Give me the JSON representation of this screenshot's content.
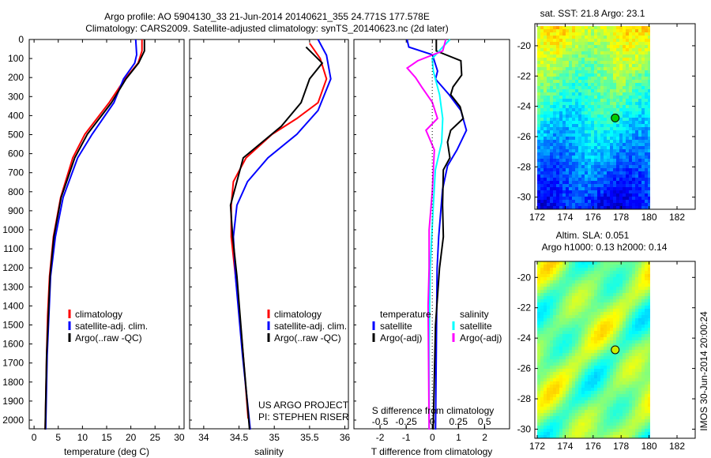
{
  "title": {
    "line1": "Argo profile: AO 5904130_33 21-Jun-2014 20140621_355 24.771S 177.578E",
    "line2": "Climatology: CARS2009. Satellite-adjusted climatology: synTS_20140623.nc (2d later)"
  },
  "colors": {
    "climatology": "#ff0000",
    "satellite": "#0000ff",
    "argo": "#000000",
    "s_satellite": "#00ffff",
    "s_argo": "#ff00ff"
  },
  "chart_data": [
    {
      "type": "line",
      "xlabel": "temperature (deg C)",
      "ylabel": "",
      "xlim": [
        -1,
        31
      ],
      "ylim": [
        2060,
        0
      ],
      "xticks": [
        "0",
        "5",
        "10",
        "15",
        "20",
        "25",
        "30"
      ],
      "yticks": [
        "0",
        "100",
        "200",
        "300",
        "400",
        "500",
        "600",
        "700",
        "800",
        "900",
        "1000",
        "1100",
        "1200",
        "1300",
        "1400",
        "1500",
        "1600",
        "1700",
        "1800",
        "1900",
        "2000"
      ],
      "legend": [
        "climatology",
        "satellite-adj. clim.",
        "Argo(..raw -QC)"
      ],
      "series": [
        {
          "name": "climatology",
          "depth": [
            0,
            60,
            124,
            207,
            332,
            415,
            498,
            622,
            830,
            1037,
            1245,
            1452,
            1660,
            1867,
            2050
          ],
          "values": [
            22.3,
            22.3,
            21.5,
            18.8,
            15.5,
            13,
            10.5,
            8,
            5.5,
            4,
            3.2,
            2.8,
            2.6,
            2.45,
            2.3
          ]
        },
        {
          "name": "satellite-adj. clim.",
          "depth": [
            0,
            80,
            124,
            207,
            332,
            498,
            622,
            830,
            1037,
            1245,
            1660,
            2050
          ],
          "values": [
            21.0,
            21.2,
            20.8,
            18.5,
            16.5,
            12,
            9,
            6,
            4.4,
            3.4,
            2.7,
            2.4
          ]
        },
        {
          "name": "Argo(..raw -QC)",
          "depth": [
            0,
            60,
            124,
            207,
            332,
            498,
            622,
            830,
            1037,
            1245,
            1660,
            2050
          ],
          "values": [
            22.8,
            22.8,
            21.6,
            19,
            16,
            11,
            8.4,
            5.6,
            4.1,
            3.3,
            2.6,
            2.3
          ]
        }
      ]
    },
    {
      "type": "line",
      "xlabel": "salinity",
      "xlim": [
        33.8,
        36.05
      ],
      "ylim": [
        2060,
        0
      ],
      "xticks": [
        "34",
        "34.5",
        "35",
        "35.5",
        "36"
      ],
      "legend": [
        "climatology",
        "satellite-adj. clim.",
        "Argo(..raw -QC)"
      ],
      "annotation": [
        "US ARGO PROJECT",
        "PI: STEPHEN RISER"
      ],
      "series": [
        {
          "name": "climatology",
          "depth": [
            20,
            100,
            207,
            332,
            415,
            498,
            622,
            747,
            871,
            1037,
            1245,
            1452,
            1660,
            1992
          ],
          "values": [
            35.5,
            35.65,
            35.74,
            35.62,
            35.32,
            34.97,
            34.6,
            34.42,
            34.39,
            34.39,
            34.45,
            34.51,
            34.56,
            34.63
          ]
        },
        {
          "name": "satellite-adj. clim.",
          "depth": [
            0,
            83,
            207,
            373,
            498,
            622,
            747,
            871,
            1037,
            1245,
            1660,
            2050
          ],
          "values": [
            35.62,
            35.74,
            35.8,
            35.62,
            35.32,
            34.91,
            34.62,
            34.47,
            34.42,
            34.45,
            34.55,
            34.66
          ]
        },
        {
          "name": "Argo(..raw -QC)",
          "depth": [
            40,
            124,
            207,
            332,
            456,
            622,
            871,
            1037,
            1245,
            1660,
            2050
          ],
          "values": [
            35.45,
            35.68,
            35.5,
            35.38,
            35.1,
            34.56,
            34.38,
            34.41,
            34.47,
            34.56,
            34.65
          ]
        }
      ]
    },
    {
      "type": "line",
      "xlabel": "T difference from climatology",
      "x2label": "S difference from climatology",
      "xlim": [
        -3.0,
        2.95
      ],
      "x2lim": [
        -0.75,
        0.74
      ],
      "ylim": [
        2060,
        0
      ],
      "xticks": [
        "-2",
        "-1",
        "0",
        "1",
        "2"
      ],
      "x2ticks": [
        "-0.5",
        "-0.25",
        "0",
        "0.25",
        "0.5"
      ],
      "legend_t_title": "temperature",
      "legend_s_title": "salinity",
      "legend": [
        "satellite",
        "Argo(-adj)",
        "satellite",
        "Argo(-adj)"
      ],
      "series": [
        {
          "name": "T satellite",
          "axis": "T",
          "depth": [
            0,
            40,
            80,
            166,
            208,
            290,
            373,
            477,
            580,
            664,
            788,
            1037,
            1203,
            2050
          ],
          "values": [
            -0.97,
            -0.9,
            0,
            0.2,
            0.12,
            0.64,
            1.09,
            1.3,
            0.94,
            0.58,
            0.39,
            0.24,
            0.18,
            0.12
          ]
        },
        {
          "name": "T Argo(-adj)",
          "axis": "T",
          "depth": [
            0,
            60,
            112,
            187,
            249,
            290,
            353,
            415,
            477,
            539,
            622,
            685,
            871,
            1037,
            1203,
            1500,
            2050
          ],
          "values": [
            0.15,
            0.15,
            1.09,
            1.12,
            0.79,
            0.7,
            1.06,
            1.18,
            0.7,
            0.58,
            0.67,
            0.42,
            0.39,
            0.42,
            0.27,
            0.12,
            0.03
          ]
        },
        {
          "name": "S satellite",
          "axis": "S",
          "depth": [
            0,
            40,
            100,
            166,
            290,
            415,
            539,
            685,
            871,
            1203,
            1600,
            2050
          ],
          "values": [
            0.17,
            0.1,
            0,
            0.01,
            0.07,
            0.1,
            0.09,
            0.03,
            0.01,
            -0.02,
            -0.03,
            -0.03
          ]
        },
        {
          "name": "S Argo(-adj)",
          "axis": "S",
          "depth": [
            0,
            60,
            112,
            150,
            200,
            250,
            330,
            415,
            477,
            580,
            800,
            1000,
            1200,
            1400,
            2050
          ],
          "values": [
            0.13,
            0.1,
            -0.14,
            -0.24,
            -0.16,
            -0.1,
            0,
            0.05,
            -0.06,
            0.02,
            0,
            -0.03,
            -0.03,
            -0.04,
            -0.03
          ]
        }
      ]
    }
  ],
  "maps": [
    {
      "title": "sat. SST: 21.8 Argo: 23.1",
      "xticks": [
        "172",
        "174",
        "176",
        "178",
        "180",
        "182"
      ],
      "yticks": [
        "-20",
        "-22",
        "-24",
        "-26",
        "-28",
        "-30"
      ],
      "argo_lon": 177.578,
      "argo_lat": -24.771
    },
    {
      "title1": "Altim. SLA: 0.051",
      "title2": "Argo h1000: 0.13 h2000: 0.14",
      "xticks": [
        "172",
        "174",
        "176",
        "178",
        "180",
        "182"
      ],
      "yticks": [
        "-20",
        "-22",
        "-24",
        "-26",
        "-28",
        "-30"
      ],
      "argo_lon": 177.578,
      "argo_lat": -24.771
    }
  ],
  "side_label": "IMOS 30-Jun-2014 20:00:24"
}
